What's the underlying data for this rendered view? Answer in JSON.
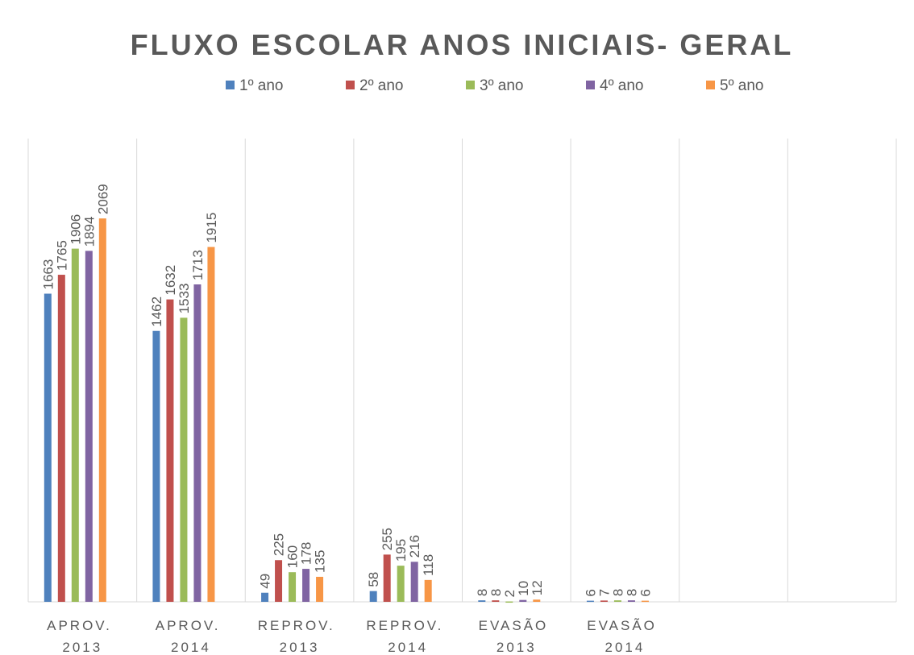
{
  "chart_data": {
    "type": "bar",
    "title": "FLUXO ESCOLAR ANOS INICIAIS- GERAL",
    "categories": [
      "APROV. 2013",
      "APROV. 2014",
      "REPROV. 2013",
      "REPROV. 2014",
      "EVASÃO 2013",
      "EVASÃO 2014",
      null,
      null
    ],
    "series": [
      {
        "name": "1º ano",
        "color": "#4f81bd",
        "values": [
          1663,
          1462,
          49,
          58,
          8,
          6,
          null,
          null
        ]
      },
      {
        "name": "2º ano",
        "color": "#c0504d",
        "values": [
          1765,
          1632,
          225,
          255,
          8,
          7,
          null,
          null
        ]
      },
      {
        "name": "3º ano",
        "color": "#9bbb59",
        "values": [
          1906,
          1533,
          160,
          195,
          2,
          8,
          null,
          null
        ]
      },
      {
        "name": "4º ano",
        "color": "#8064a2",
        "values": [
          1894,
          1713,
          178,
          216,
          10,
          8,
          null,
          null
        ]
      },
      {
        "name": "5º ano",
        "color": "#f79646",
        "values": [
          2069,
          1915,
          135,
          118,
          12,
          6,
          null,
          null
        ]
      }
    ],
    "ylim": [
      0,
      2500
    ],
    "legend": "top"
  }
}
